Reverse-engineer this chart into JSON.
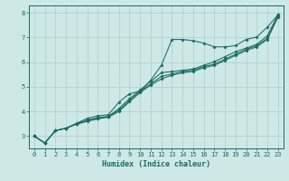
{
  "xlabel": "Humidex (Indice chaleur)",
  "bg_color": "#cde8e5",
  "grid_color": "#aacfcc",
  "line_color": "#1a6b60",
  "xlim": [
    -0.5,
    23.5
  ],
  "ylim": [
    2.5,
    8.3
  ],
  "series1_x": [
    0,
    1,
    2,
    3,
    4,
    5,
    6,
    7,
    8,
    9,
    10,
    11,
    12,
    13,
    14,
    15,
    16,
    17,
    18,
    19,
    20,
    21,
    22,
    23
  ],
  "series1_y": [
    3.0,
    2.72,
    3.22,
    3.32,
    3.52,
    3.72,
    3.82,
    3.87,
    4.38,
    4.72,
    4.82,
    5.27,
    5.87,
    6.92,
    6.92,
    6.87,
    6.77,
    6.62,
    6.62,
    6.67,
    6.92,
    7.02,
    7.42,
    7.92
  ],
  "series2_x": [
    0,
    1,
    2,
    3,
    4,
    5,
    6,
    7,
    8,
    9,
    10,
    11,
    12,
    13,
    14,
    15,
    16,
    17,
    18,
    19,
    20,
    21,
    22,
    23
  ],
  "series2_y": [
    3.0,
    2.72,
    3.22,
    3.32,
    3.5,
    3.65,
    3.75,
    3.8,
    4.12,
    4.52,
    4.87,
    5.22,
    5.57,
    5.62,
    5.67,
    5.72,
    5.87,
    6.02,
    6.22,
    6.42,
    6.57,
    6.72,
    7.07,
    7.92
  ],
  "series3_x": [
    0,
    1,
    2,
    3,
    4,
    5,
    6,
    7,
    8,
    9,
    10,
    11,
    12,
    13,
    14,
    15,
    16,
    17,
    18,
    19,
    20,
    21,
    22,
    23
  ],
  "series3_y": [
    3.0,
    2.72,
    3.22,
    3.32,
    3.5,
    3.62,
    3.72,
    3.78,
    4.05,
    4.45,
    4.82,
    5.12,
    5.42,
    5.52,
    5.62,
    5.67,
    5.82,
    5.92,
    6.12,
    6.32,
    6.52,
    6.67,
    6.97,
    7.87
  ],
  "series4_x": [
    0,
    1,
    2,
    3,
    4,
    5,
    6,
    7,
    8,
    9,
    10,
    11,
    12,
    13,
    14,
    15,
    16,
    17,
    18,
    19,
    20,
    21,
    22,
    23
  ],
  "series4_y": [
    3.0,
    2.72,
    3.22,
    3.32,
    3.48,
    3.6,
    3.7,
    3.77,
    4.0,
    4.4,
    4.77,
    5.07,
    5.32,
    5.47,
    5.57,
    5.62,
    5.77,
    5.87,
    6.07,
    6.27,
    6.47,
    6.62,
    6.92,
    7.82
  ]
}
